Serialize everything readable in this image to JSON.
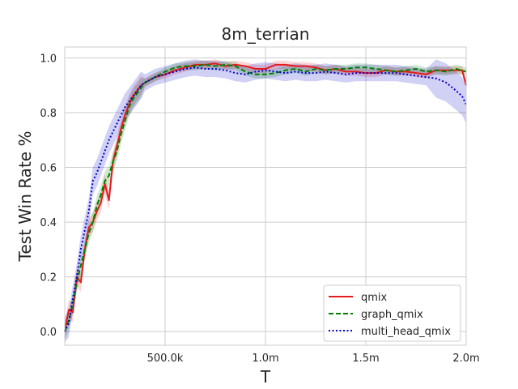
{
  "chart_data": {
    "type": "line",
    "title": "8m_terrian",
    "xlabel": "T",
    "ylabel": "Test Win Rate %",
    "xlim": [
      0,
      2000000
    ],
    "ylim": [
      -0.05,
      1.04
    ],
    "grid": true,
    "legend_position": "lower-right",
    "x_ticks": [
      {
        "value": 500000,
        "label": "500.0k"
      },
      {
        "value": 1000000,
        "label": "1.0m"
      },
      {
        "value": 1500000,
        "label": "1.5m"
      },
      {
        "value": 2000000,
        "label": "2.0m"
      }
    ],
    "y_ticks": [
      {
        "value": 0.0,
        "label": "0.0"
      },
      {
        "value": 0.2,
        "label": "0.2"
      },
      {
        "value": 0.4,
        "label": "0.4"
      },
      {
        "value": 0.6,
        "label": "0.6"
      },
      {
        "value": 0.8,
        "label": "0.8"
      },
      {
        "value": 1.0,
        "label": "1.0"
      }
    ],
    "series": [
      {
        "name": "qmix",
        "color": "#e41a1c",
        "style": "solid",
        "x": [
          0,
          20000,
          40000,
          60000,
          80000,
          100000,
          120000,
          140000,
          160000,
          180000,
          200000,
          220000,
          240000,
          260000,
          280000,
          300000,
          320000,
          340000,
          360000,
          380000,
          400000,
          450000,
          500000,
          550000,
          600000,
          650000,
          700000,
          750000,
          800000,
          850000,
          900000,
          950000,
          1000000,
          1050000,
          1100000,
          1150000,
          1200000,
          1250000,
          1300000,
          1350000,
          1400000,
          1450000,
          1500000,
          1550000,
          1600000,
          1650000,
          1700000,
          1750000,
          1800000,
          1850000,
          1900000,
          1950000,
          1980000,
          2000000
        ],
        "y": [
          0.0,
          0.08,
          0.07,
          0.2,
          0.18,
          0.3,
          0.38,
          0.4,
          0.44,
          0.47,
          0.54,
          0.48,
          0.62,
          0.68,
          0.74,
          0.79,
          0.83,
          0.86,
          0.88,
          0.9,
          0.91,
          0.93,
          0.94,
          0.955,
          0.965,
          0.975,
          0.975,
          0.98,
          0.97,
          0.975,
          0.97,
          0.96,
          0.96,
          0.975,
          0.975,
          0.97,
          0.97,
          0.965,
          0.955,
          0.96,
          0.95,
          0.95,
          0.945,
          0.945,
          0.955,
          0.95,
          0.95,
          0.945,
          0.94,
          0.955,
          0.955,
          0.955,
          0.955,
          0.9
        ]
      },
      {
        "name": "graph_qmix",
        "color": "#008000",
        "style": "dashed",
        "x": [
          0,
          20000,
          40000,
          60000,
          80000,
          100000,
          120000,
          140000,
          160000,
          180000,
          200000,
          220000,
          240000,
          260000,
          280000,
          300000,
          320000,
          340000,
          360000,
          380000,
          400000,
          450000,
          500000,
          550000,
          600000,
          650000,
          700000,
          750000,
          800000,
          850000,
          900000,
          950000,
          1000000,
          1050000,
          1100000,
          1150000,
          1200000,
          1250000,
          1300000,
          1350000,
          1400000,
          1450000,
          1500000,
          1550000,
          1600000,
          1650000,
          1700000,
          1750000,
          1800000,
          1850000,
          1900000,
          1950000,
          2000000
        ],
        "y": [
          0.0,
          0.04,
          0.1,
          0.18,
          0.24,
          0.3,
          0.36,
          0.4,
          0.46,
          0.5,
          0.55,
          0.57,
          0.62,
          0.66,
          0.72,
          0.77,
          0.82,
          0.85,
          0.87,
          0.89,
          0.91,
          0.93,
          0.95,
          0.965,
          0.97,
          0.97,
          0.975,
          0.97,
          0.975,
          0.97,
          0.95,
          0.94,
          0.94,
          0.945,
          0.955,
          0.96,
          0.95,
          0.96,
          0.955,
          0.96,
          0.96,
          0.965,
          0.965,
          0.96,
          0.955,
          0.95,
          0.955,
          0.96,
          0.95,
          0.955,
          0.95,
          0.96,
          0.95
        ]
      },
      {
        "name": "multi_head_qmix",
        "color": "#0000cc",
        "style": "dotted",
        "x": [
          0,
          20000,
          40000,
          60000,
          80000,
          100000,
          120000,
          140000,
          160000,
          180000,
          200000,
          220000,
          240000,
          260000,
          280000,
          300000,
          320000,
          340000,
          360000,
          380000,
          400000,
          450000,
          500000,
          550000,
          600000,
          650000,
          700000,
          750000,
          800000,
          850000,
          900000,
          950000,
          1000000,
          1050000,
          1100000,
          1150000,
          1200000,
          1250000,
          1300000,
          1350000,
          1400000,
          1450000,
          1500000,
          1550000,
          1600000,
          1650000,
          1700000,
          1750000,
          1800000,
          1850000,
          1900000,
          1950000,
          1980000,
          2000000
        ],
        "y": [
          0.0,
          0.03,
          0.12,
          0.2,
          0.3,
          0.37,
          0.44,
          0.55,
          0.58,
          0.62,
          0.66,
          0.7,
          0.73,
          0.76,
          0.79,
          0.82,
          0.84,
          0.86,
          0.88,
          0.9,
          0.91,
          0.93,
          0.94,
          0.95,
          0.96,
          0.965,
          0.96,
          0.96,
          0.955,
          0.945,
          0.94,
          0.95,
          0.955,
          0.95,
          0.945,
          0.95,
          0.945,
          0.945,
          0.95,
          0.945,
          0.94,
          0.945,
          0.945,
          0.945,
          0.945,
          0.945,
          0.94,
          0.935,
          0.93,
          0.925,
          0.91,
          0.88,
          0.86,
          0.83
        ]
      }
    ]
  }
}
